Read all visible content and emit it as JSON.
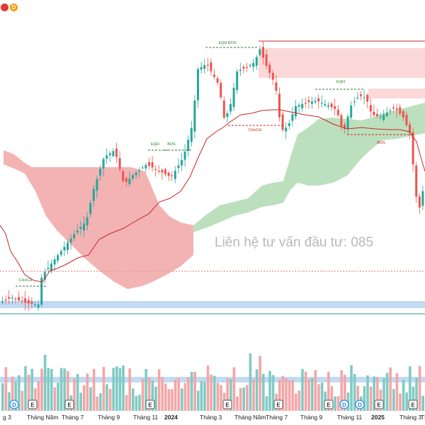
{
  "header": {
    "badges": [
      {
        "letter": "",
        "color": "#e53935",
        "name": "red-badge-icon"
      },
      {
        "letter": "D",
        "color": "#ff9800",
        "name": "orange-d-badge-icon"
      }
    ]
  },
  "watermark": "Liên hệ tư vấn đầu tư:  085",
  "x_labels": [
    "g 3",
    "Tháng Năm",
    "Tháng 7",
    "Tháng 9",
    "Tháng 11",
    "2024",
    "Tháng 3",
    "Tháng Năm",
    "Tháng 7",
    "Tháng 9",
    "Tháng 11",
    "2025",
    "Tháng 3",
    "Th"
  ],
  "event_markers": [
    {
      "letter": "D",
      "type": "dividend"
    },
    {
      "letter": "E",
      "type": "earnings"
    },
    {
      "letter": "E",
      "type": "earnings"
    },
    {
      "letter": "E",
      "type": "earnings"
    },
    {
      "letter": "E",
      "type": "earnings"
    },
    {
      "letter": "E",
      "type": "earnings"
    },
    {
      "letter": "E",
      "type": "earnings"
    },
    {
      "letter": "D",
      "type": "dividend"
    },
    {
      "letter": "D",
      "type": "dividend"
    },
    {
      "letter": "E",
      "type": "earnings"
    },
    {
      "letter": "E",
      "type": "earnings"
    }
  ],
  "colors": {
    "up": "#26a69a",
    "down": "#ef5350",
    "cloud_bull": "#a5d6a7",
    "cloud_bear": "#ef9a9a",
    "kijun": "#c62828",
    "bos_line": "#2e7d32",
    "zone_red": "#fbd0d0",
    "zone_blue": "#b7d3f2",
    "vol_up": "#80cbc4",
    "vol_down": "#f4a6a6",
    "axis_line": "#26a69a"
  },
  "chart_data": {
    "type": "candlestick",
    "title": "",
    "annotations": [
      {
        "text": "CHoCH",
        "style": "bull"
      },
      {
        "text": "EQH",
        "style": "bull"
      },
      {
        "text": "BOS",
        "style": "bull"
      },
      {
        "text": "EQH BOS",
        "style": "bull"
      },
      {
        "text": "CHoCH",
        "style": "bear"
      },
      {
        "text": "EQH",
        "style": "bull"
      },
      {
        "text": "BOS",
        "style": "bear"
      }
    ],
    "indicators": [
      "Ichimoku cloud",
      "Kijun line",
      "Volume",
      "Smart money concepts"
    ]
  }
}
